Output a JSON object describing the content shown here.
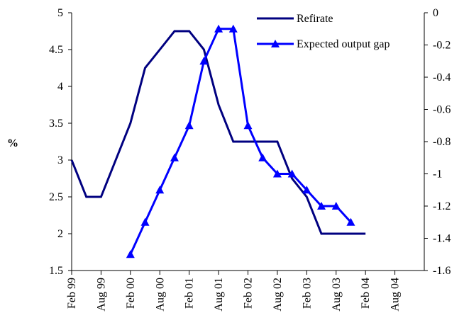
{
  "chart_data": {
    "type": "line",
    "title": "",
    "xlabel": "",
    "ylabel": "%",
    "y2label": "",
    "x_tick_labels": [
      "Feb 99",
      "Aug 99",
      "Feb 00",
      "Aug 00",
      "Feb 01",
      "Aug 01",
      "Feb 02",
      "Aug 02",
      "Feb 03",
      "Aug 03",
      "Feb 04",
      "Aug 04"
    ],
    "y_left": {
      "min": 1.5,
      "max": 5,
      "step": 0.5,
      "tick_labels": [
        "1.5",
        "2",
        "2.5",
        "3",
        "3.5",
        "4",
        "4.5",
        "5"
      ]
    },
    "y_right": {
      "min": -1.6,
      "max": 0,
      "step": 0.2,
      "tick_labels": [
        "-1.6",
        "-1.4",
        "-1.2",
        "-1",
        "-0.8",
        "-0.6",
        "-0.4",
        "-0.2",
        "0"
      ]
    },
    "grid": false,
    "legend_position": "top-right",
    "series": [
      {
        "name": "Refirate",
        "axis": "left",
        "color": "#000080",
        "marker": "none",
        "points": [
          [
            "Feb 99",
            3.0
          ],
          [
            "May 99",
            2.5
          ],
          [
            "Aug 99",
            2.5
          ],
          [
            "Nov 99",
            3.0
          ],
          [
            "Feb 00",
            3.5
          ],
          [
            "May 00",
            4.25
          ],
          [
            "Aug 00",
            4.5
          ],
          [
            "Nov 00",
            4.75
          ],
          [
            "Feb 01",
            4.75
          ],
          [
            "May 01",
            4.5
          ],
          [
            "Aug 01",
            3.75
          ],
          [
            "Nov 01",
            3.25
          ],
          [
            "Feb 02",
            3.25
          ],
          [
            "May 02",
            3.25
          ],
          [
            "Aug 02",
            3.25
          ],
          [
            "Nov 02",
            2.75
          ],
          [
            "Feb 03",
            2.5
          ],
          [
            "May 03",
            2.0
          ],
          [
            "Aug 03",
            2.0
          ],
          [
            "Nov 03",
            2.0
          ],
          [
            "Feb 04",
            2.0
          ]
        ]
      },
      {
        "name": "Expected output gap",
        "axis": "right",
        "color": "#0000FF",
        "marker": "triangle",
        "points": [
          [
            "Feb 00",
            -1.5
          ],
          [
            "May 00",
            -1.3
          ],
          [
            "Aug 00",
            -1.1
          ],
          [
            "Nov 00",
            -0.9
          ],
          [
            "Feb 01",
            -0.7
          ],
          [
            "May 01",
            -0.3
          ],
          [
            "Aug 01",
            -0.1
          ],
          [
            "Nov 01",
            -0.1
          ],
          [
            "Feb 02",
            -0.7
          ],
          [
            "May 02",
            -0.9
          ],
          [
            "Aug 02",
            -1.0
          ],
          [
            "Nov 02",
            -1.0
          ],
          [
            "Feb 03",
            -1.1
          ],
          [
            "May 03",
            -1.2
          ],
          [
            "Aug 03",
            -1.2
          ],
          [
            "Nov 03",
            -1.3
          ]
        ]
      }
    ]
  }
}
